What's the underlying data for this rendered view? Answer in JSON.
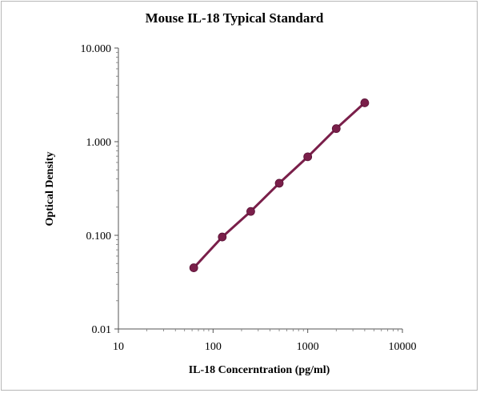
{
  "chart_data": {
    "type": "line",
    "title": "Mouse IL-18 Typical Standard",
    "xlabel": "IL-18 Concerntration (pg/ml)",
    "ylabel": "Optical Density",
    "x_scale": "log",
    "y_scale": "log",
    "xlim": [
      10,
      10000
    ],
    "ylim": [
      0.01,
      10
    ],
    "x_ticks": [
      "10",
      "100",
      "1000",
      "10000"
    ],
    "y_ticks": [
      "0.01",
      "0.100",
      "1.000",
      "10.000"
    ],
    "grid": false,
    "legend": "none",
    "series": [
      {
        "color": "#7a1f4a",
        "x": [
          62.5,
          125,
          250,
          500,
          1000,
          2000,
          4000
        ],
        "y": [
          0.045,
          0.096,
          0.18,
          0.36,
          0.69,
          1.38,
          2.6
        ]
      }
    ]
  }
}
